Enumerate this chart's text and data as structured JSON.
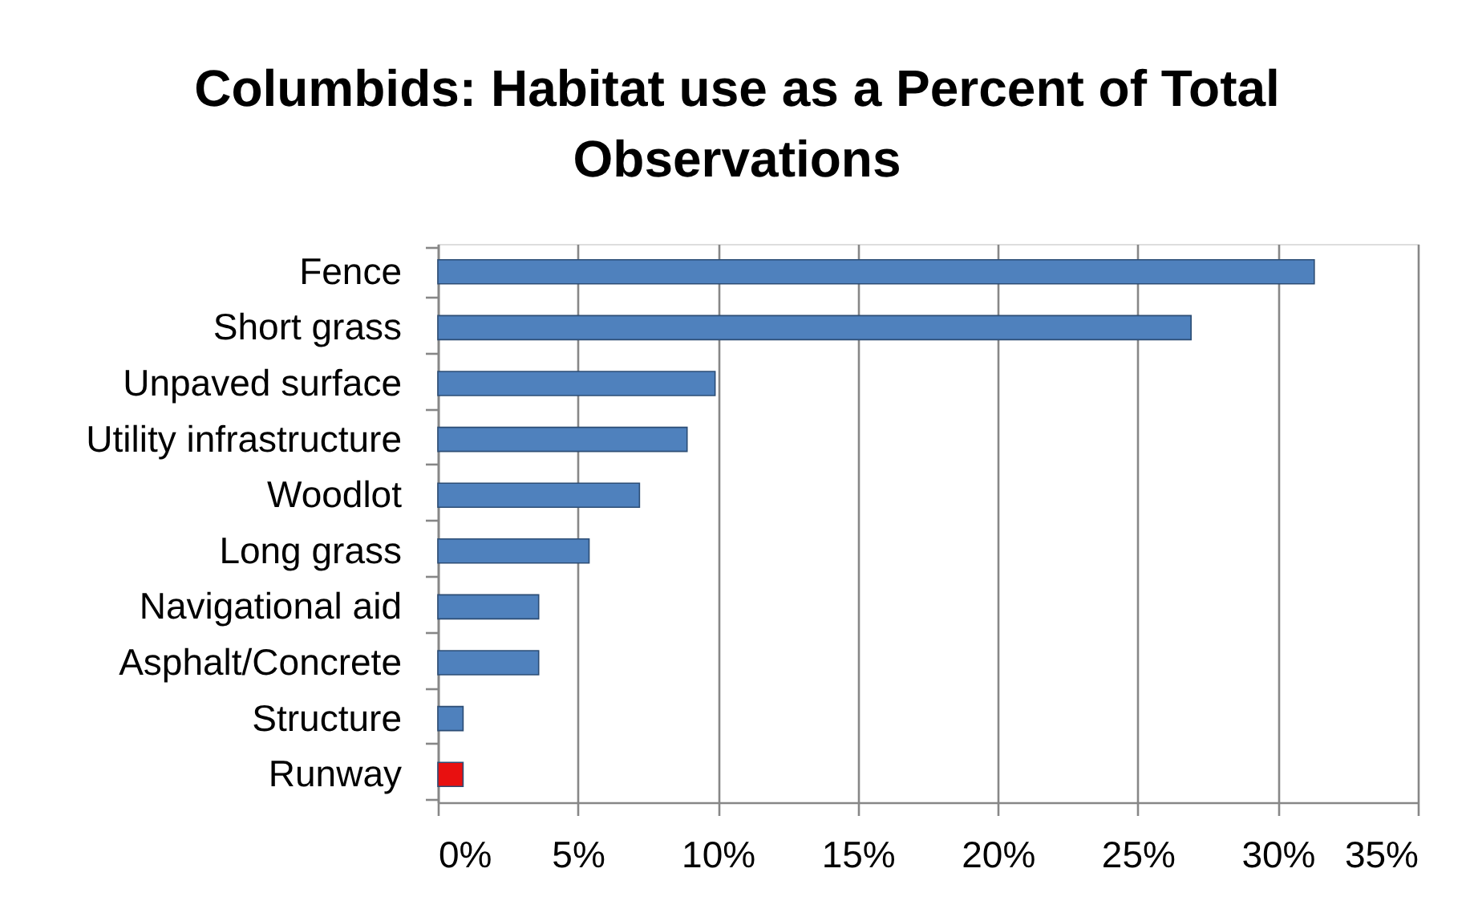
{
  "chart_data": {
    "type": "bar",
    "orientation": "horizontal",
    "title": "Columbids:  Habitat use as a Percent of Total Observations",
    "categories": [
      "Fence",
      "Short grass",
      "Unpaved surface",
      "Utility infrastructure",
      "Woodlot",
      "Long grass",
      "Navigational aid",
      "Asphalt/Concrete",
      "Structure",
      "Runway"
    ],
    "values": [
      31.3,
      26.9,
      9.9,
      8.9,
      7.2,
      5.4,
      3.6,
      3.6,
      0.9,
      0.9
    ],
    "colors": [
      "#4f81bd",
      "#4f81bd",
      "#4f81bd",
      "#4f81bd",
      "#4f81bd",
      "#4f81bd",
      "#4f81bd",
      "#4f81bd",
      "#4f81bd",
      "#e81010"
    ],
    "xlim": [
      0,
      35
    ],
    "xticks": [
      {
        "value": 0,
        "label": "0%"
      },
      {
        "value": 5,
        "label": "5%"
      },
      {
        "value": 10,
        "label": "10%"
      },
      {
        "value": 15,
        "label": "15%"
      },
      {
        "value": 20,
        "label": "20%"
      },
      {
        "value": 25,
        "label": "25%"
      },
      {
        "value": 30,
        "label": "30%"
      },
      {
        "value": 35,
        "label": "35%"
      }
    ],
    "grid": "x"
  }
}
